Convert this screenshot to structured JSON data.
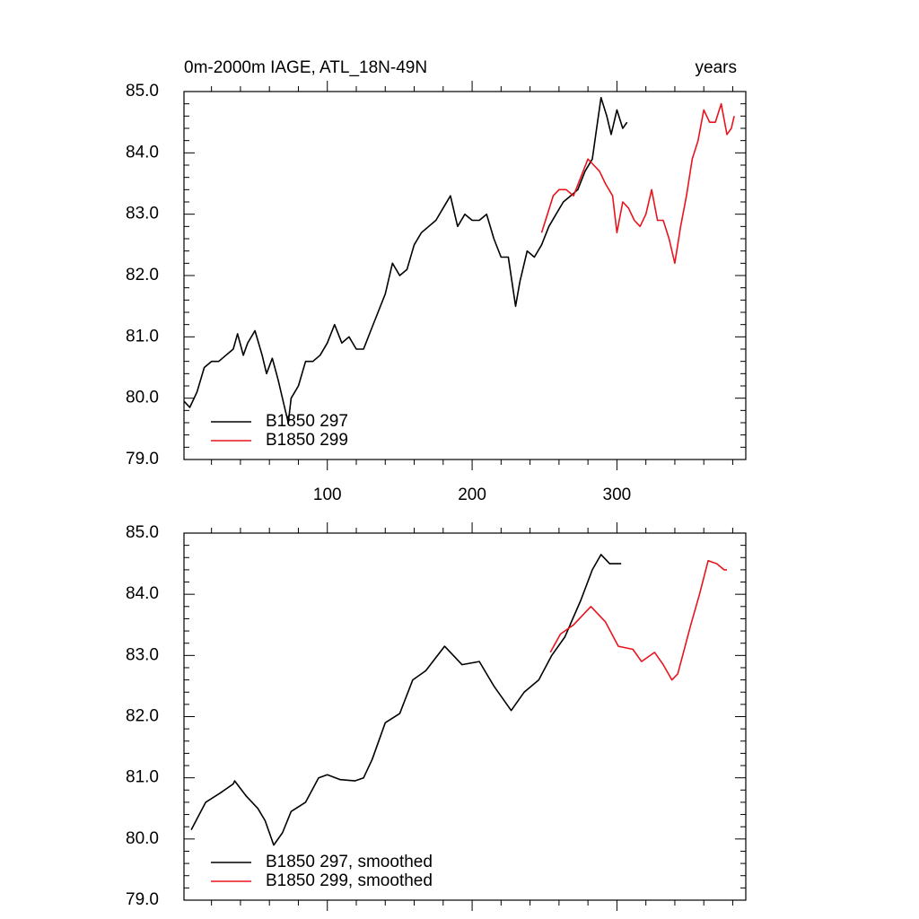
{
  "chart_data": [
    {
      "type": "line",
      "title": "0m-2000m IAGE, ATL_18N-49N",
      "title_right": "years",
      "xlim": [
        1,
        389
      ],
      "xticks": [
        100,
        200,
        300
      ],
      "show_xtick_labels": true,
      "ylim": [
        79,
        85
      ],
      "yticks": [
        {
          "value": 79,
          "label": "79.0"
        },
        {
          "value": 80,
          "label": "80.0"
        },
        {
          "value": 81,
          "label": "81.0"
        },
        {
          "value": 82,
          "label": "82.0"
        },
        {
          "value": 83,
          "label": "83.0"
        },
        {
          "value": 84,
          "label": "84.0"
        },
        {
          "value": 85,
          "label": "85.0"
        }
      ],
      "legend": "lower-left",
      "series": [
        {
          "name": "B1850 297",
          "color": "#000000",
          "x": [
            1,
            5,
            10,
            15,
            20,
            25,
            30,
            35,
            38,
            42,
            45,
            50,
            55,
            58,
            62,
            66,
            70,
            73,
            75,
            80,
            85,
            90,
            95,
            100,
            105,
            110,
            115,
            120,
            125,
            130,
            135,
            140,
            145,
            150,
            155,
            160,
            165,
            170,
            175,
            180,
            185,
            190,
            195,
            200,
            205,
            210,
            215,
            220,
            225,
            230,
            233,
            238,
            243,
            248,
            253,
            258,
            263,
            268,
            273,
            278,
            283,
            286,
            289,
            293,
            296,
            300,
            304,
            307
          ],
          "values": [
            79.95,
            79.85,
            80.1,
            80.5,
            80.6,
            80.6,
            80.7,
            80.8,
            81.05,
            80.7,
            80.9,
            81.1,
            80.7,
            80.4,
            80.65,
            80.3,
            79.9,
            79.6,
            80.0,
            80.2,
            80.6,
            80.6,
            80.7,
            80.9,
            81.2,
            80.9,
            81.0,
            80.8,
            80.8,
            81.1,
            81.4,
            81.7,
            82.2,
            82.0,
            82.1,
            82.5,
            82.7,
            82.8,
            82.9,
            83.1,
            83.3,
            82.8,
            83.0,
            82.9,
            82.9,
            83.0,
            82.6,
            82.3,
            82.3,
            81.5,
            81.9,
            82.4,
            82.3,
            82.5,
            82.8,
            83.0,
            83.2,
            83.3,
            83.4,
            83.7,
            83.9,
            84.4,
            84.9,
            84.6,
            84.3,
            84.7,
            84.4,
            84.5
          ]
        },
        {
          "name": "B1850 299",
          "color": "#e8141c",
          "x": [
            248,
            252,
            256,
            260,
            265,
            270,
            275,
            280,
            284,
            288,
            292,
            297,
            300,
            304,
            308,
            312,
            316,
            320,
            324,
            328,
            332,
            336,
            340,
            344,
            348,
            352,
            356,
            360,
            364,
            368,
            372,
            376,
            379,
            381
          ],
          "values": [
            82.7,
            83.0,
            83.3,
            83.4,
            83.4,
            83.3,
            83.6,
            83.9,
            83.8,
            83.7,
            83.5,
            83.3,
            82.7,
            83.2,
            83.1,
            82.9,
            82.8,
            83.0,
            83.4,
            82.9,
            82.9,
            82.6,
            82.2,
            82.8,
            83.3,
            83.9,
            84.2,
            84.7,
            84.5,
            84.5,
            84.8,
            84.3,
            84.4,
            84.6
          ]
        }
      ]
    },
    {
      "type": "line",
      "xlim": [
        1,
        389
      ],
      "xticks": [
        100,
        200,
        300
      ],
      "show_xtick_labels": false,
      "ylim": [
        79,
        85
      ],
      "yticks": [
        {
          "value": 79,
          "label": "79.0"
        },
        {
          "value": 80,
          "label": "80.0"
        },
        {
          "value": 81,
          "label": "81.0"
        },
        {
          "value": 82,
          "label": "82.0"
        },
        {
          "value": 83,
          "label": "83.0"
        },
        {
          "value": 84,
          "label": "84.0"
        },
        {
          "value": 85,
          "label": "85.0"
        }
      ],
      "legend": "lower-left",
      "series": [
        {
          "name": "B1850 297, smoothed",
          "color": "#000000",
          "x": [
            6,
            16,
            26,
            35,
            36,
            44,
            52,
            57,
            63,
            69,
            75,
            85,
            94,
            100,
            109,
            119,
            125,
            131,
            140,
            150,
            159,
            168,
            181,
            193,
            205,
            215,
            227,
            236,
            246,
            255,
            264,
            275,
            283,
            289,
            295,
            303
          ],
          "values": [
            80.15,
            80.6,
            80.75,
            80.9,
            80.95,
            80.7,
            80.5,
            80.3,
            79.9,
            80.1,
            80.45,
            80.6,
            81.0,
            81.05,
            80.97,
            80.95,
            81.0,
            81.3,
            81.9,
            82.05,
            82.6,
            82.75,
            83.15,
            82.85,
            82.9,
            82.5,
            82.1,
            82.4,
            82.6,
            83.0,
            83.3,
            83.9,
            84.4,
            84.65,
            84.5,
            84.5
          ]
        },
        {
          "name": "B1850 299, smoothed",
          "color": "#e8141c",
          "x": [
            254,
            261,
            270,
            282,
            292,
            301,
            311,
            317,
            326,
            332,
            338,
            342,
            351,
            357,
            363,
            369,
            374,
            376
          ],
          "values": [
            83.05,
            83.35,
            83.5,
            83.8,
            83.55,
            83.15,
            83.1,
            82.9,
            83.05,
            82.85,
            82.6,
            82.7,
            83.5,
            84.0,
            84.55,
            84.5,
            84.4,
            84.4
          ]
        }
      ]
    }
  ]
}
